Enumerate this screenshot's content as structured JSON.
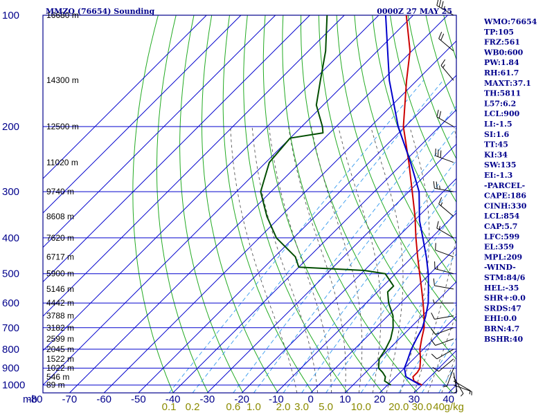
{
  "header": {
    "station": "MMZO (76654) Sounding",
    "time": "0000Z 27 MAY 25"
  },
  "colors": {
    "frame": "#00008b",
    "isobar": "#0000cd",
    "isotherm": "#0000cd",
    "dry_adiabat": "#22aa22",
    "moist_adiabat": "#555555",
    "mixing_ratio": "#3399ee",
    "temperature": "#cc0000",
    "dewpoint": "#004d00",
    "parcel": "#0000cc",
    "wind": "#000000"
  },
  "chart_data": {
    "type": "line",
    "pressure_levels_mb": [
      100,
      200,
      300,
      400,
      500,
      600,
      700,
      800,
      900,
      1000
    ],
    "pressure_unit_label": "mb",
    "temperature_ticks_c": [
      "-80",
      "-70",
      "-60",
      "-50",
      "-40",
      "-30",
      "-20",
      "-10",
      "0",
      "10",
      "20",
      "30",
      "40"
    ],
    "xlim_c": [
      -80,
      40
    ],
    "ylim_mb": [
      1050,
      100
    ],
    "y_scale": "log",
    "height_labels": [
      {
        "p": 100,
        "label": "16680 m"
      },
      {
        "p": 150,
        "label": "14300 m"
      },
      {
        "p": 200,
        "label": "12500 m"
      },
      {
        "p": 250,
        "label": "11020 m"
      },
      {
        "p": 300,
        "label": "9740 m"
      },
      {
        "p": 350,
        "label": "8608 m"
      },
      {
        "p": 400,
        "label": "7620 m"
      },
      {
        "p": 450,
        "label": "6717 m"
      },
      {
        "p": 500,
        "label": "5900 m"
      },
      {
        "p": 550,
        "label": "5146 m"
      },
      {
        "p": 600,
        "label": "4442 m"
      },
      {
        "p": 650,
        "label": "3788 m"
      },
      {
        "p": 700,
        "label": "3182 m"
      },
      {
        "p": 750,
        "label": "2599 m"
      },
      {
        "p": 800,
        "label": "2045 m"
      },
      {
        "p": 850,
        "label": "1522 m"
      },
      {
        "p": 900,
        "label": "1022 m"
      },
      {
        "p": 950,
        "label": "546 m"
      },
      {
        "p": 1000,
        "label": "89 m"
      }
    ],
    "mixing_ratio_labels": [
      {
        "w": 0.1,
        "label": "0.1"
      },
      {
        "w": 0.2,
        "label": "0.2"
      },
      {
        "w": 0.6,
        "label": "0.6"
      },
      {
        "w": 1.0,
        "label": "1.0"
      },
      {
        "w": 2.0,
        "label": "2.0"
      },
      {
        "w": 3.0,
        "label": "3.0"
      },
      {
        "w": 5.0,
        "label": "5.0"
      },
      {
        "w": 10.0,
        "label": "10.0"
      },
      {
        "w": 20.0,
        "label": "20.0"
      },
      {
        "w": 30.0,
        "label": "30.0"
      },
      {
        "w": 40.0,
        "label": "40"
      }
    ],
    "mixing_ratio_unit": "g/kg",
    "dry_adiabats_theta_k": [
      230,
      240,
      250,
      260,
      270,
      280,
      290,
      300,
      310,
      320,
      330,
      340,
      350,
      360,
      370,
      380,
      390,
      400,
      410,
      420,
      430,
      440,
      450,
      460,
      470,
      480,
      490,
      500,
      510,
      520,
      530,
      540,
      550
    ],
    "moist_adiabats_start_c": [
      -4,
      2,
      6,
      10,
      14,
      18,
      22,
      26,
      30,
      34,
      38
    ],
    "series": [
      {
        "name": "Temperature",
        "points": [
          [
            1000,
            30.0
          ],
          [
            975,
            26.5
          ],
          [
            950,
            25.0
          ],
          [
            925,
            25.0
          ],
          [
            900,
            24.5
          ],
          [
            850,
            22.0
          ],
          [
            800,
            19.0
          ],
          [
            750,
            16.5
          ],
          [
            700,
            14.0
          ],
          [
            650,
            10.5
          ],
          [
            600,
            6.5
          ],
          [
            550,
            2.0
          ],
          [
            500,
            -3.0
          ],
          [
            450,
            -8.5
          ],
          [
            400,
            -14.5
          ],
          [
            350,
            -21.0
          ],
          [
            300,
            -29.0
          ],
          [
            250,
            -38.5
          ],
          [
            200,
            -50.5
          ],
          [
            150,
            -63.0
          ],
          [
            125,
            -70.5
          ],
          [
            100,
            -82.0
          ]
        ]
      },
      {
        "name": "Dewpoint",
        "points": [
          [
            1000,
            21.0
          ],
          [
            975,
            18.0
          ],
          [
            950,
            17.0
          ],
          [
            925,
            15.0
          ],
          [
            900,
            12.5
          ],
          [
            850,
            10.0
          ],
          [
            800,
            9.0
          ],
          [
            750,
            7.5
          ],
          [
            700,
            5.0
          ],
          [
            650,
            1.5
          ],
          [
            600,
            -3.5
          ],
          [
            560,
            -7.0
          ],
          [
            540,
            -7.0
          ],
          [
            500,
            -13.0
          ],
          [
            490,
            -20.0
          ],
          [
            480,
            -40.0
          ],
          [
            450,
            -44.0
          ],
          [
            400,
            -55.0
          ],
          [
            350,
            -64.0
          ],
          [
            300,
            -73.0
          ],
          [
            250,
            -79.0
          ],
          [
            215,
            -80.0
          ],
          [
            208,
            -72.0
          ],
          [
            200,
            -74.0
          ],
          [
            175,
            -82.0
          ],
          [
            150,
            -88.0
          ],
          [
            125,
            -95.0
          ],
          [
            100,
            -105.0
          ]
        ]
      },
      {
        "name": "Parcel",
        "points": [
          [
            1000,
            29.5
          ],
          [
            950,
            23.0
          ],
          [
            900,
            20.0
          ],
          [
            854,
            18.5
          ],
          [
            800,
            16.5
          ],
          [
            750,
            15.0
          ],
          [
            700,
            13.5
          ],
          [
            650,
            11.0
          ],
          [
            600,
            8.0
          ],
          [
            550,
            4.0
          ],
          [
            500,
            -0.5
          ],
          [
            450,
            -6.0
          ],
          [
            400,
            -12.5
          ],
          [
            359,
            -18.5
          ],
          [
            300,
            -27.0
          ],
          [
            250,
            -38.0
          ],
          [
            200,
            -52.0
          ],
          [
            150,
            -68.0
          ],
          [
            125,
            -77.0
          ],
          [
            100,
            -88.0
          ]
        ]
      }
    ],
    "wind_barbs": [
      {
        "p": 1000,
        "dir": 110,
        "kt": 5
      },
      {
        "p": 975,
        "dir": 120,
        "kt": 5
      },
      {
        "p": 950,
        "dir": 150,
        "kt": 5
      },
      {
        "p": 925,
        "dir": 170,
        "kt": 5
      },
      {
        "p": 900,
        "dir": 200,
        "kt": 5
      },
      {
        "p": 850,
        "dir": 230,
        "kt": 10
      },
      {
        "p": 800,
        "dir": 240,
        "kt": 10
      },
      {
        "p": 750,
        "dir": 250,
        "kt": 10
      },
      {
        "p": 700,
        "dir": 250,
        "kt": 10
      },
      {
        "p": 650,
        "dir": 260,
        "kt": 10
      },
      {
        "p": 600,
        "dir": 270,
        "kt": 5
      },
      {
        "p": 550,
        "dir": 280,
        "kt": 10
      },
      {
        "p": 500,
        "dir": 285,
        "kt": 15
      },
      {
        "p": 450,
        "dir": 290,
        "kt": 10
      },
      {
        "p": 400,
        "dir": 300,
        "kt": 15
      },
      {
        "p": 350,
        "dir": 310,
        "kt": 15
      },
      {
        "p": 300,
        "dir": 280,
        "kt": 25
      },
      {
        "p": 250,
        "dir": 290,
        "kt": 30
      },
      {
        "p": 200,
        "dir": 300,
        "kt": 20
      },
      {
        "p": 150,
        "dir": 320,
        "kt": 15
      },
      {
        "p": 125,
        "dir": 310,
        "kt": 20
      },
      {
        "p": 100,
        "dir": 300,
        "kt": 35
      }
    ]
  },
  "indices": [
    "WMO:76654",
    "TP:105",
    "FRZ:561",
    "WB0:600",
    "PW:1.84",
    "RH:61.7",
    "MAXT:37.1",
    "TH:5811",
    "L57:6.2",
    "LCL:900",
    "LI:-1.5",
    "SI:1.6",
    "TT:45",
    "KI:34",
    "SW:135",
    "EI:-1.3",
    "-PARCEL-",
    "CAPE:186",
    "CINH:330",
    "LCL:854",
    "CAP:5.7",
    "LFC:599",
    "EL:359",
    "MPL:209",
    "-WIND-",
    "STM:84/6",
    "HEL:-35",
    "SHR+:0.0",
    "SRDS:47",
    "EHI:0.0",
    "BRN:4.7",
    "BSHR:40"
  ]
}
